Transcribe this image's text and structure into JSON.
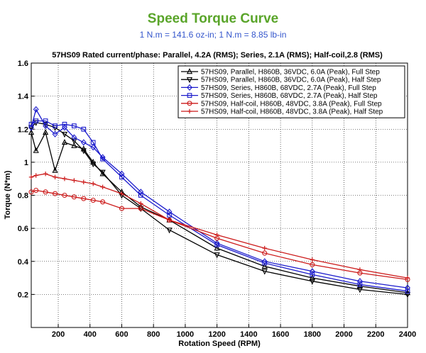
{
  "header": {
    "title": "Speed Torque Curve",
    "subtitle": "1 N.m = 141.6 oz-in;  1 N.m = 8.85 lb-in"
  },
  "chart_data": {
    "type": "line",
    "title": "57HS09 Rated current/phase: Parallel, 4.2A (RMS); Series, 2.1A (RMS); Half-coil,2.8 (RMS)",
    "xlabel": "Rotation Speed (RPM)",
    "ylabel": "Torque (N*m)",
    "xlim": [
      30,
      2400
    ],
    "ylim": [
      0,
      1.6
    ],
    "xticks": [
      200,
      400,
      600,
      800,
      1000,
      1200,
      1400,
      1600,
      1800,
      2000,
      2200,
      2400
    ],
    "yticks": [
      0.2,
      0.4,
      0.6,
      0.8,
      1.0,
      1.2,
      1.4,
      1.6
    ],
    "xtick_labels": [
      "200",
      "400",
      "600",
      "800",
      "1000",
      "1200",
      "1400",
      "1600",
      "1800",
      "2000",
      "2200",
      "2400"
    ],
    "ytick_labels": [
      "0.2",
      "0.4",
      "0.6",
      "0.8",
      "1",
      "1.2",
      "1.4",
      "1.6"
    ],
    "grid": true,
    "legend_position": "top-right",
    "series": [
      {
        "name": "57HS09, Parallel, H860B, 36VDC, 6.0A (Peak), Full Step",
        "color": "#000000",
        "marker": "triangle-up",
        "x": [
          30,
          60,
          120,
          180,
          240,
          300,
          360,
          420,
          480,
          600,
          720,
          900,
          1200,
          1500,
          1800,
          2100,
          2400
        ],
        "y": [
          1.18,
          1.07,
          1.18,
          0.95,
          1.12,
          1.1,
          1.08,
          1.0,
          0.93,
          0.82,
          0.73,
          0.65,
          0.48,
          0.37,
          0.3,
          0.25,
          0.21
        ]
      },
      {
        "name": "57HS09, Parallel, H860B, 36VDC, 6.0A (Peak), Half Step",
        "color": "#000000",
        "marker": "triangle-down",
        "x": [
          30,
          60,
          120,
          180,
          240,
          300,
          360,
          420,
          480,
          600,
          720,
          900,
          1200,
          1500,
          1800,
          2100,
          2400
        ],
        "y": [
          1.21,
          1.24,
          1.23,
          1.21,
          1.17,
          1.13,
          1.07,
          0.99,
          0.94,
          0.8,
          0.72,
          0.59,
          0.44,
          0.34,
          0.28,
          0.23,
          0.2
        ]
      },
      {
        "name": "57HS09, Series, H860B, 68VDC, 2.7A (Peak), Full Step",
        "color": "#1a1acc",
        "marker": "diamond",
        "x": [
          30,
          60,
          120,
          180,
          240,
          300,
          360,
          420,
          480,
          600,
          720,
          900,
          1200,
          1500,
          1800,
          2100,
          2400
        ],
        "y": [
          1.21,
          1.32,
          1.22,
          1.17,
          1.21,
          1.15,
          1.12,
          1.09,
          1.03,
          0.93,
          0.82,
          0.7,
          0.51,
          0.4,
          0.34,
          0.28,
          0.24
        ]
      },
      {
        "name": "57HS09, Series, H860B, 68VDC, 2.7A (Peak), Half Step",
        "color": "#1a1acc",
        "marker": "square",
        "x": [
          30,
          60,
          120,
          180,
          240,
          300,
          360,
          420,
          480,
          600,
          720,
          900,
          1200,
          1500,
          1800,
          2100,
          2400
        ],
        "y": [
          1.23,
          1.25,
          1.25,
          1.22,
          1.23,
          1.22,
          1.2,
          1.12,
          1.02,
          0.91,
          0.8,
          0.68,
          0.5,
          0.39,
          0.32,
          0.26,
          0.22
        ]
      },
      {
        "name": "57HS09, Half-coil, H860B, 48VDC, 3.8A (Peak), Full Step",
        "color": "#cc1a1a",
        "marker": "circle",
        "x": [
          30,
          60,
          120,
          180,
          240,
          300,
          360,
          420,
          480,
          600,
          720,
          900,
          1200,
          1500,
          1800,
          2100,
          2400
        ],
        "y": [
          0.82,
          0.83,
          0.82,
          0.81,
          0.8,
          0.79,
          0.78,
          0.77,
          0.76,
          0.72,
          0.72,
          0.65,
          0.54,
          0.45,
          0.38,
          0.33,
          0.29
        ]
      },
      {
        "name": "57HS09, Half-coil, H860B, 48VDC, 3.8A (Peak), Half Step",
        "color": "#cc1a1a",
        "marker": "plus",
        "x": [
          30,
          60,
          120,
          180,
          240,
          300,
          360,
          420,
          480,
          600,
          720,
          900,
          1200,
          1500,
          1800,
          2100,
          2400
        ],
        "y": [
          0.91,
          0.92,
          0.93,
          0.91,
          0.9,
          0.89,
          0.88,
          0.87,
          0.85,
          0.81,
          0.75,
          0.65,
          0.56,
          0.48,
          0.41,
          0.35,
          0.3
        ]
      }
    ]
  }
}
